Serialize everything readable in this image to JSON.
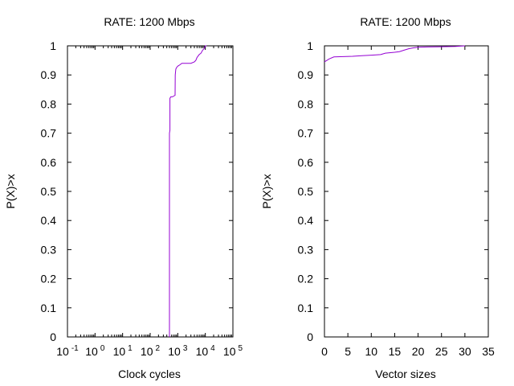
{
  "chart_data": [
    {
      "type": "line",
      "title": "RATE: 1200 Mbps",
      "xlabel": "Clock cycles",
      "ylabel": "P(X)>x",
      "xscale": "log",
      "xlim": [
        0.1,
        100000
      ],
      "ylim": [
        0,
        1
      ],
      "x_ticks": [
        {
          "base": "10",
          "exp": "-1",
          "value": 0.1
        },
        {
          "base": "10",
          "exp": "0",
          "value": 1
        },
        {
          "base": "10",
          "exp": "1",
          "value": 10
        },
        {
          "base": "10",
          "exp": "2",
          "value": 100
        },
        {
          "base": "10",
          "exp": "3",
          "value": 1000
        },
        {
          "base": "10",
          "exp": "4",
          "value": 10000
        },
        {
          "base": "10",
          "exp": "5",
          "value": 100000
        }
      ],
      "y_ticks": [
        "0",
        "0.1",
        "0.2",
        "0.3",
        "0.4",
        "0.5",
        "0.6",
        "0.7",
        "0.8",
        "0.9",
        "1"
      ],
      "line_color": "#9400D3",
      "series": [
        {
          "x": [
            500,
            500,
            520,
            520,
            560,
            640,
            800,
            810,
            850,
            900,
            1000,
            1200,
            1400,
            2000,
            3000,
            4000,
            4500,
            5000,
            6000,
            7000,
            8000,
            9000,
            10000,
            11000
          ],
          "y": [
            0,
            0.7,
            0.71,
            0.82,
            0.825,
            0.825,
            0.83,
            0.9,
            0.92,
            0.925,
            0.93,
            0.935,
            0.94,
            0.94,
            0.94,
            0.945,
            0.95,
            0.96,
            0.97,
            0.975,
            0.985,
            0.99,
            1.0,
            1.0
          ]
        }
      ]
    },
    {
      "type": "line",
      "title": "RATE: 1200 Mbps",
      "xlabel": "Vector sizes",
      "ylabel": "P(X)>x",
      "xlim": [
        0,
        35
      ],
      "ylim": [
        0,
        1
      ],
      "x_ticks": [
        "0",
        "5",
        "10",
        "15",
        "20",
        "25",
        "30",
        "35"
      ],
      "y_ticks": [
        "0",
        "0.1",
        "0.2",
        "0.3",
        "0.4",
        "0.5",
        "0.6",
        "0.7",
        "0.8",
        "0.9",
        "1"
      ],
      "line_color": "#9400D3",
      "series": [
        {
          "x": [
            0,
            1,
            2,
            4,
            6,
            8,
            10,
            12,
            13,
            15,
            16,
            17,
            18,
            19,
            20,
            22,
            25,
            28,
            30
          ],
          "y": [
            0.945,
            0.955,
            0.962,
            0.963,
            0.964,
            0.966,
            0.968,
            0.97,
            0.975,
            0.978,
            0.98,
            0.985,
            0.99,
            0.993,
            0.995,
            0.996,
            0.997,
            0.998,
            1.0
          ]
        }
      ]
    }
  ]
}
